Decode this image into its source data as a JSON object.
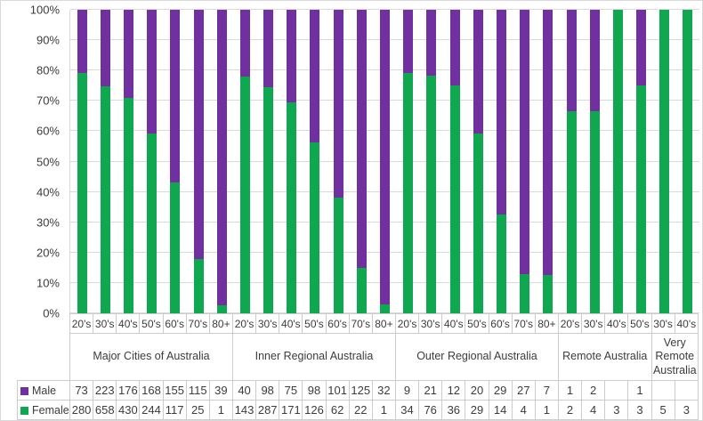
{
  "window": {
    "background": "#FFFFFF",
    "border_color": "#D9D9D9",
    "gridline_color": "#D9D9D9",
    "table_border_color": "#CCCCCC",
    "text_color": "#3C3C3C"
  },
  "chart_data": {
    "type": "bar",
    "variant": "100-percent-stacked-column",
    "title": "",
    "xlabel": "",
    "ylabel": "",
    "grid": true,
    "legend_position": "data-table-left",
    "y_axis": {
      "ylim": [
        0,
        100
      ],
      "ticks": [
        "100%",
        "90%",
        "80%",
        "70%",
        "60%",
        "50%",
        "40%",
        "30%",
        "20%",
        "10%",
        "0%"
      ]
    },
    "legend": [
      {
        "name": "Male",
        "color": "#7030A0"
      },
      {
        "name": "Female",
        "color": "#0FA750"
      }
    ],
    "groups": [
      {
        "label": "Major Cities of Australia",
        "ages": [
          "20's",
          "30's",
          "40's",
          "50's",
          "60's",
          "70's",
          "80+"
        ],
        "male": [
          73,
          223,
          176,
          168,
          155,
          115,
          39
        ],
        "female": [
          280,
          658,
          430,
          244,
          117,
          25,
          1
        ]
      },
      {
        "label": "Inner Regional Australia",
        "ages": [
          "20's",
          "30's",
          "40's",
          "50's",
          "60's",
          "70's",
          "80+"
        ],
        "male": [
          40,
          98,
          75,
          98,
          101,
          125,
          32
        ],
        "female": [
          143,
          287,
          171,
          126,
          62,
          22,
          1
        ]
      },
      {
        "label": "Outer Regional Australia",
        "ages": [
          "20's",
          "30's",
          "40's",
          "50's",
          "60's",
          "70's",
          "80+"
        ],
        "male": [
          9,
          21,
          12,
          20,
          29,
          27,
          7
        ],
        "female": [
          34,
          76,
          36,
          29,
          14,
          4,
          1
        ]
      },
      {
        "label": "Remote Australia",
        "ages": [
          "20's",
          "30's",
          "40's",
          "50's"
        ],
        "male": [
          1,
          2,
          null,
          1
        ],
        "female": [
          2,
          4,
          3,
          3
        ]
      },
      {
        "label": "Very Remote Australia",
        "ages": [
          "30's",
          "40's"
        ],
        "male": [
          null,
          null
        ],
        "female": [
          5,
          3
        ]
      }
    ]
  }
}
